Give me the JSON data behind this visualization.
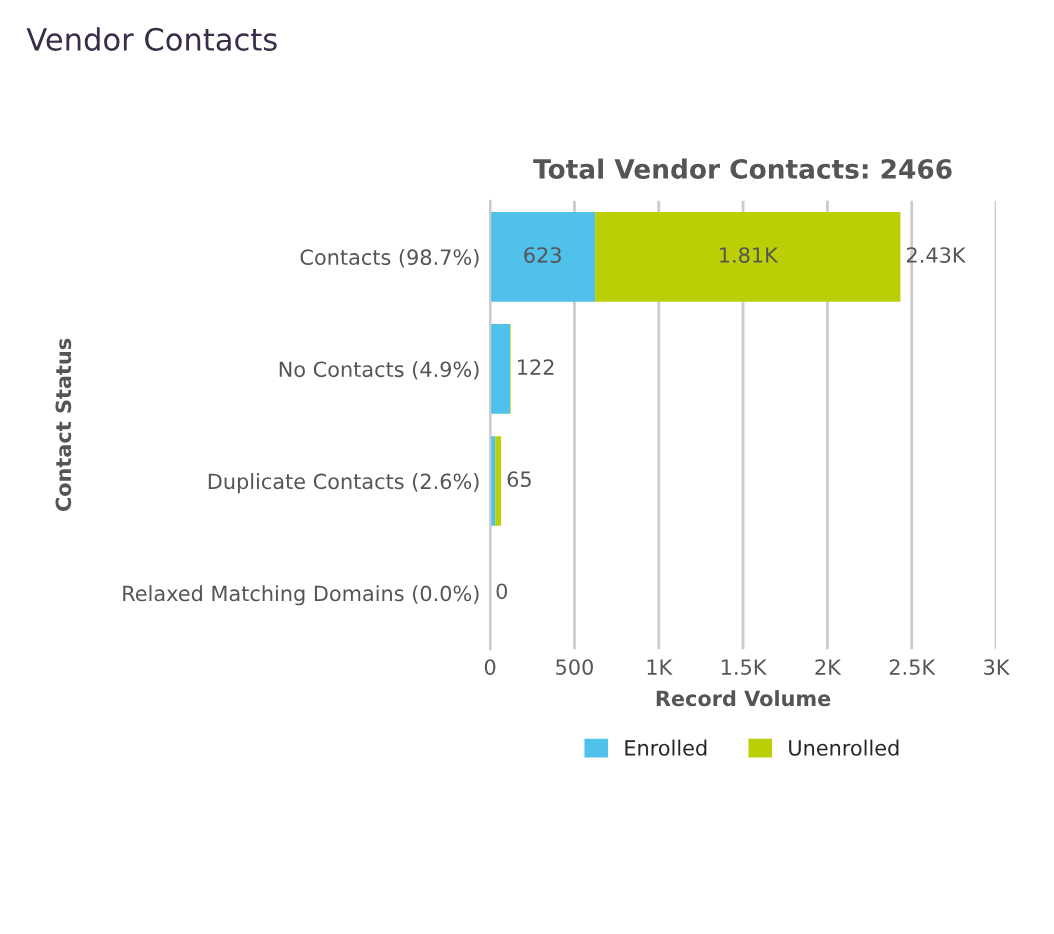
{
  "chart_data": {
    "type": "bar",
    "orientation": "horizontal",
    "stacked": true,
    "title": "Vendor Contacts",
    "subtitle": "Total Vendor Contacts: 2466",
    "xlabel": "Record Volume",
    "ylabel": "Contact Status",
    "categories": [
      "Contacts (98.7%)",
      "No Contacts (4.9%)",
      "Duplicate Contacts (2.6%)",
      "Relaxed Matching Domains (0.0%)"
    ],
    "series": [
      {
        "name": "Enrolled",
        "color": "#4fc1ea",
        "values": [
          623,
          118,
          30,
          0
        ],
        "value_labels": [
          "623",
          null,
          null,
          null
        ]
      },
      {
        "name": "Unenrolled",
        "color": "#bccf06",
        "values": [
          1810,
          4,
          35,
          0
        ],
        "value_labels": [
          "1.81K",
          null,
          null,
          null
        ]
      }
    ],
    "totals": [
      "2.43K",
      "122",
      "65",
      "0"
    ],
    "xlim": [
      0,
      3000
    ],
    "xticks": [
      0,
      500,
      {
        "value": 1000,
        "label": "1K"
      },
      {
        "value": 1500,
        "label": "1.5K"
      },
      {
        "value": 2000,
        "label": "2K"
      },
      {
        "value": 2500,
        "label": "2.5K"
      },
      {
        "value": 3000,
        "label": "3K"
      }
    ],
    "grid": "x",
    "legend": "bottom"
  }
}
